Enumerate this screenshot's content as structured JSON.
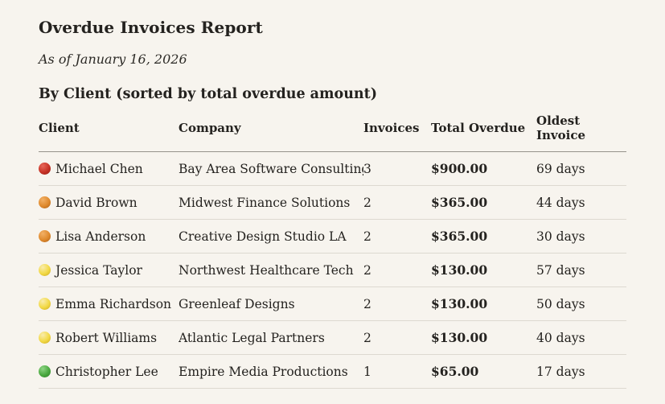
{
  "page": {
    "title": "Overdue Invoices Report",
    "as_of": "As of January 16, 2026",
    "section_heading": "By Client (sorted by total overdue amount)"
  },
  "colors": {
    "background": "#f7f4ee",
    "text": "#24221f",
    "header_rule": "#95928b",
    "row_rule": "#ddd9d0",
    "status": {
      "red": "#c63226",
      "orange": "#df8a2e",
      "yellow": "#f2d944",
      "green": "#4aa83f"
    }
  },
  "table": {
    "headers": {
      "client": "Client",
      "company": "Company",
      "invoices": "Invoices",
      "total_overdue": "Total Overdue",
      "oldest_invoice": "Oldest Invoice"
    },
    "rows": [
      {
        "status": "red",
        "dot": {
          "light": "#e8685a",
          "mid": "#c63226",
          "dark": "#8f1b10"
        },
        "client": "Michael Chen",
        "company": "Bay Area Software Consulting",
        "invoices": "3",
        "total_overdue": "$900.00",
        "oldest_invoice": "69 days"
      },
      {
        "status": "orange",
        "dot": {
          "light": "#f2b066",
          "mid": "#df8a2e",
          "dark": "#a95d14"
        },
        "client": "David Brown",
        "company": "Midwest Finance Solutions",
        "invoices": "2",
        "total_overdue": "$365.00",
        "oldest_invoice": "44 days"
      },
      {
        "status": "orange",
        "dot": {
          "light": "#f2b066",
          "mid": "#df8a2e",
          "dark": "#a95d14"
        },
        "client": "Lisa Anderson",
        "company": "Creative Design Studio LA",
        "invoices": "2",
        "total_overdue": "$365.00",
        "oldest_invoice": "30 days"
      },
      {
        "status": "yellow",
        "dot": {
          "light": "#f9ecad",
          "mid": "#f2d944",
          "dark": "#c8a41f"
        },
        "client": "Jessica Taylor",
        "company": "Northwest Healthcare Tech",
        "invoices": "2",
        "total_overdue": "$130.00",
        "oldest_invoice": "57 days"
      },
      {
        "status": "yellow",
        "dot": {
          "light": "#f9ecad",
          "mid": "#f2d944",
          "dark": "#c8a41f"
        },
        "client": "Emma Richardson",
        "company": "Greenleaf Designs",
        "invoices": "2",
        "total_overdue": "$130.00",
        "oldest_invoice": "50 days"
      },
      {
        "status": "yellow",
        "dot": {
          "light": "#f9ecad",
          "mid": "#f2d944",
          "dark": "#c8a41f"
        },
        "client": "Robert Williams",
        "company": "Atlantic Legal Partners",
        "invoices": "2",
        "total_overdue": "$130.00",
        "oldest_invoice": "40 days"
      },
      {
        "status": "green",
        "dot": {
          "light": "#8ed584",
          "mid": "#4aa83f",
          "dark": "#2f7d2a"
        },
        "client": "Christopher Lee",
        "company": "Empire Media Productions",
        "invoices": "1",
        "total_overdue": "$65.00",
        "oldest_invoice": "17 days"
      }
    ]
  }
}
